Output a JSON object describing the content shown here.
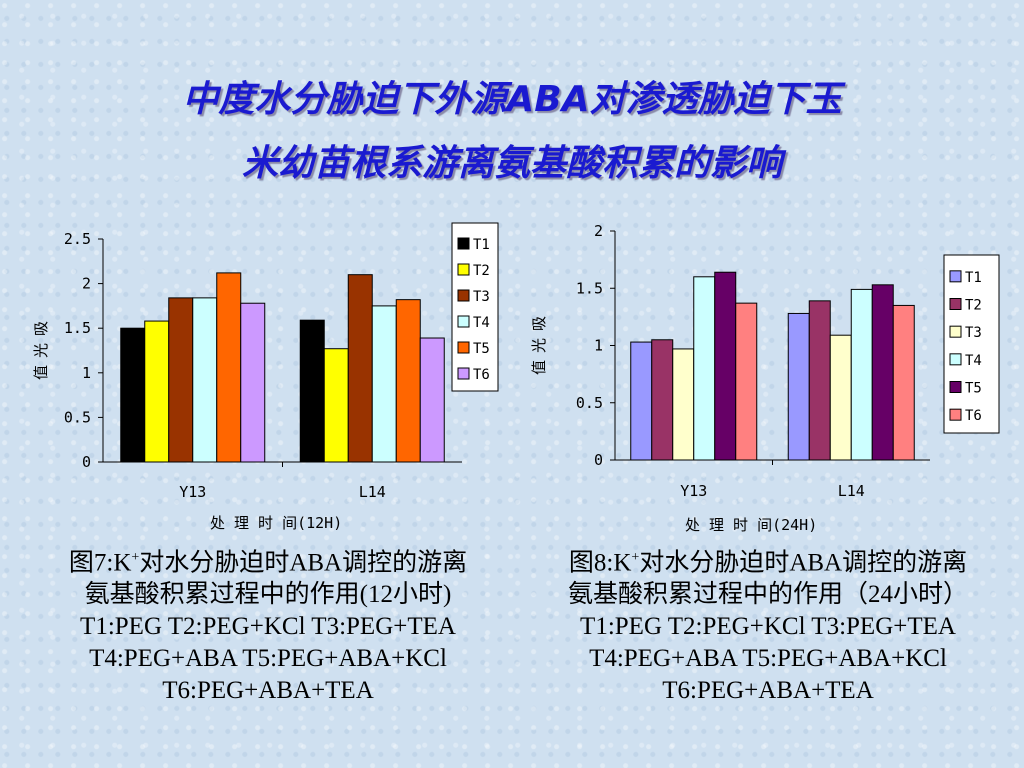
{
  "title_line1": "中度水分胁迫下外源ABA对渗透胁迫下玉",
  "title_line2": "米幼苗根系游离氨基酸积累的影响",
  "chart_data": [
    {
      "type": "bar",
      "ylabel": "吸 光 值",
      "xlabel": "处 理 时 间(12H)",
      "categories": [
        "Y13",
        "L14"
      ],
      "ylim": [
        0,
        2.5
      ],
      "yticks": [
        "0",
        "0.5",
        "1",
        "1.5",
        "2",
        "2.5"
      ],
      "grid": false,
      "legend_position": "top-right",
      "series": [
        {
          "name": "T1",
          "color": "#000000",
          "values": [
            1.5,
            1.59
          ]
        },
        {
          "name": "T2",
          "color": "#ffff00",
          "values": [
            1.58,
            1.27
          ]
        },
        {
          "name": "T3",
          "color": "#993300",
          "values": [
            1.84,
            2.1
          ]
        },
        {
          "name": "T4",
          "color": "#ccffff",
          "values": [
            1.84,
            1.75
          ]
        },
        {
          "name": "T5",
          "color": "#ff6600",
          "values": [
            2.12,
            1.82
          ]
        },
        {
          "name": "T6",
          "color": "#cc99ff",
          "values": [
            1.78,
            1.39
          ]
        }
      ]
    },
    {
      "type": "bar",
      "ylabel": "吸 光 值",
      "xlabel": "处 理 时 间(24H)",
      "categories": [
        "Y13",
        "L14"
      ],
      "ylim": [
        0,
        2
      ],
      "yticks": [
        "0",
        "0.5",
        "1",
        "1.5",
        "2"
      ],
      "grid": false,
      "legend_position": "right",
      "series": [
        {
          "name": "T1",
          "color": "#9999ff",
          "values": [
            1.03,
            1.28
          ]
        },
        {
          "name": "T2",
          "color": "#993366",
          "values": [
            1.05,
            1.39
          ]
        },
        {
          "name": "T3",
          "color": "#ffffcc",
          "values": [
            0.97,
            1.09
          ]
        },
        {
          "name": "T4",
          "color": "#ccffff",
          "values": [
            1.6,
            1.49
          ]
        },
        {
          "name": "T5",
          "color": "#660066",
          "values": [
            1.64,
            1.53
          ]
        },
        {
          "name": "T6",
          "color": "#ff8080",
          "values": [
            1.37,
            1.35
          ]
        }
      ]
    }
  ],
  "captions": [
    {
      "prefix": "图7:K",
      "sup": "+",
      "line1_rest": "对水分胁迫时ABA调控的游离",
      "line2": "氨基酸积累过程中的作用(12小时)",
      "line3": "T1:PEG  T2:PEG+KCl  T3:PEG+TEA",
      "line4": "T4:PEG+ABA  T5:PEG+ABA+KCl",
      "line5": "T6:PEG+ABA+TEA"
    },
    {
      "prefix": "图8:K",
      "sup": "+",
      "line1_rest": "对水分胁迫时ABA调控的游离",
      "line2": "氨基酸积累过程中的作用（24小时）",
      "line3": "T1:PEG  T2:PEG+KCl  T3:PEG+TEA",
      "line4": "T4:PEG+ABA  T5:PEG+ABA+KCl",
      "line5": "T6:PEG+ABA+TEA"
    }
  ]
}
